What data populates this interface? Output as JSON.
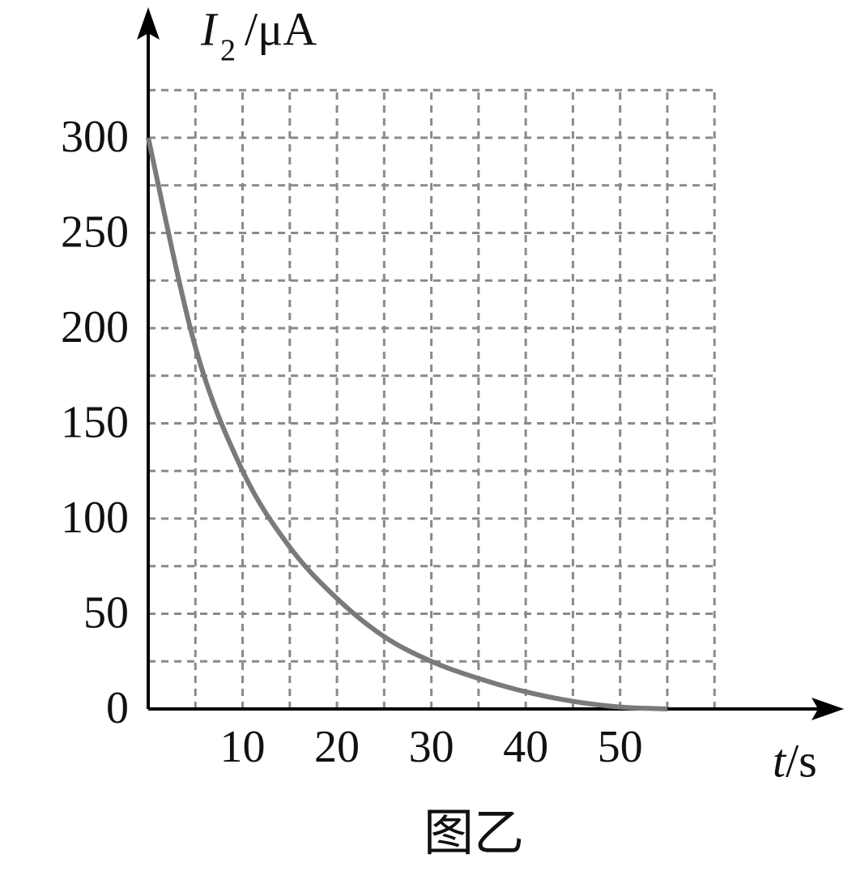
{
  "chart_data": {
    "type": "line",
    "y_label": {
      "symbol": "I",
      "subscript": "2",
      "unit": "/μA"
    },
    "x_label": {
      "symbol": "t",
      "unit": "/s"
    },
    "caption": "图乙",
    "x": [
      0,
      5,
      10,
      15,
      20,
      25,
      30,
      35,
      40,
      45,
      50,
      55
    ],
    "series": [
      {
        "name": "I2",
        "color": "#7a7a7a",
        "values": [
          300,
          190,
          125,
          85,
          58,
          38,
          25,
          16,
          9,
          4,
          1,
          0
        ]
      }
    ],
    "xlim": [
      0,
      72
    ],
    "ylim": [
      0,
      360
    ],
    "xticks": [
      10,
      20,
      30,
      40,
      50
    ],
    "yticks": [
      0,
      50,
      100,
      150,
      200,
      250,
      300
    ],
    "grid": true,
    "grid_xvalues": [
      5,
      10,
      15,
      20,
      25,
      30,
      35,
      40,
      45,
      50,
      55,
      60
    ],
    "grid_yvalues": [
      25,
      50,
      75,
      100,
      125,
      150,
      175,
      200,
      225,
      250,
      275,
      300,
      325
    ]
  }
}
